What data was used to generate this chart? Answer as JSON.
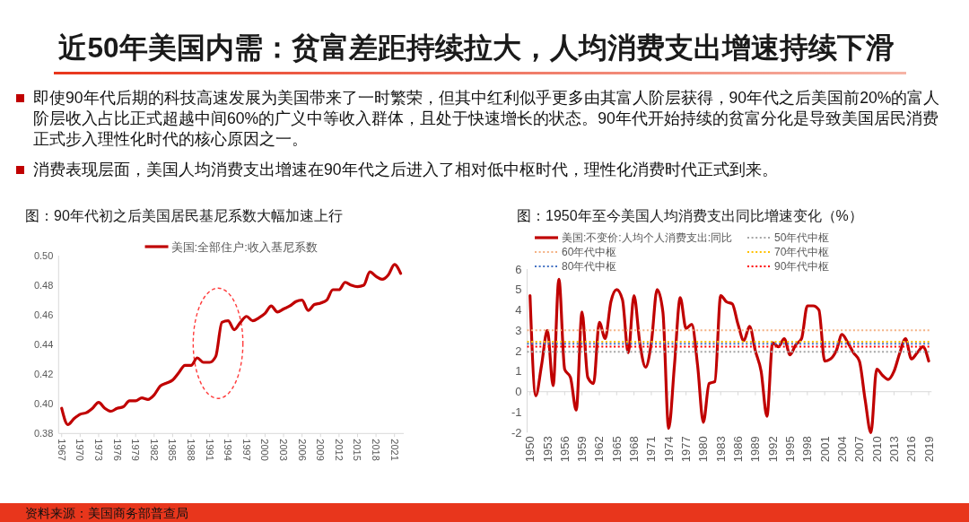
{
  "chart_data": [
    {
      "type": "other",
      "title": "近50年美国内需：贫富差距持续拉大，人均消费支出增速持续下滑",
      "annotations": [
        "即使90年代后期的科技高速发展为美国带来了一时繁荣，但其中红利似乎更多由其富人阶层获得，90年代之后美国前20%的富人阶层收入占比正式超越中间60%的广义中等收入群体，且处于快速增长的状态。90年代开始持续的贫富分化是导致美国居民消费正式步入理性化时代的核心原因之一。",
        "消费表现层面，美国人均消费支出增速在90年代之后进入了相对低中枢时代，理性化消费时代正式到来。"
      ]
    },
    {
      "type": "line",
      "title": "图：90年代初之后美国居民基尼系数大幅加速上行",
      "x": [
        1967,
        1968,
        1969,
        1970,
        1971,
        1972,
        1973,
        1974,
        1975,
        1976,
        1977,
        1978,
        1979,
        1980,
        1981,
        1982,
        1983,
        1984,
        1985,
        1986,
        1987,
        1988,
        1989,
        1990,
        1991,
        1992,
        1993,
        1994,
        1995,
        1996,
        1997,
        1998,
        1999,
        2000,
        2001,
        2002,
        2003,
        2004,
        2005,
        2006,
        2007,
        2008,
        2009,
        2010,
        2011,
        2012,
        2013,
        2014,
        2015,
        2016,
        2017,
        2018,
        2019,
        2020,
        2021,
        2022
      ],
      "series": [
        {
          "name": "美国:全部住户:收入基尼系数",
          "color": "#c00000",
          "values": [
            0.397,
            0.386,
            0.39,
            0.393,
            0.394,
            0.397,
            0.401,
            0.397,
            0.395,
            0.397,
            0.398,
            0.402,
            0.402,
            0.404,
            0.403,
            0.406,
            0.412,
            0.414,
            0.416,
            0.421,
            0.426,
            0.426,
            0.431,
            0.428,
            0.428,
            0.432,
            0.455,
            0.456,
            0.45,
            0.455,
            0.459,
            0.456,
            0.458,
            0.461,
            0.466,
            0.462,
            0.464,
            0.466,
            0.469,
            0.47,
            0.463,
            0.467,
            0.468,
            0.47,
            0.477,
            0.477,
            0.482,
            0.48,
            0.479,
            0.48,
            0.489,
            0.486,
            0.484,
            0.487,
            0.494,
            0.488
          ]
        }
      ],
      "xlim": [
        1966.5,
        2022.5
      ],
      "xticks": [
        1967,
        1970,
        1973,
        1976,
        1979,
        1982,
        1985,
        1988,
        1991,
        1994,
        1997,
        2000,
        2003,
        2006,
        2009,
        2012,
        2015,
        2018,
        2021
      ],
      "ylim": [
        0.38,
        0.5
      ],
      "yticks": [
        0.38,
        {
          "value": 0.4,
          "label": "0.40"
        },
        0.42,
        0.44,
        0.46,
        0.48,
        {
          "value": 0.5,
          "label": "0.50"
        }
      ],
      "legend": "top",
      "annotations": [
        "资料来源：美国商务部普查局"
      ]
    },
    {
      "type": "line",
      "title": "图：1950年至今美国人均消费支出同比增速变化（%）",
      "x": [
        1950,
        1951,
        1952,
        1953,
        1954,
        1955,
        1956,
        1957,
        1958,
        1959,
        1960,
        1961,
        1962,
        1963,
        1964,
        1965,
        1966,
        1967,
        1968,
        1969,
        1970,
        1971,
        1972,
        1973,
        1974,
        1975,
        1976,
        1977,
        1978,
        1979,
        1980,
        1981,
        1982,
        1983,
        1984,
        1985,
        1986,
        1987,
        1988,
        1989,
        1990,
        1991,
        1992,
        1993,
        1994,
        1995,
        1996,
        1997,
        1998,
        1999,
        2000,
        2001,
        2002,
        2003,
        2004,
        2005,
        2006,
        2007,
        2008,
        2009,
        2010,
        2011,
        2012,
        2013,
        2014,
        2015,
        2016,
        2017,
        2018,
        2019
      ],
      "series": [
        {
          "name": "美国:不变价:人均个人消费支出:同比",
          "color": "#c00000",
          "values": [
            4.7,
            -0.2,
            1.3,
            3.0,
            0.3,
            5.5,
            1.1,
            0.7,
            -0.9,
            3.9,
            0.7,
            0.4,
            3.4,
            2.6,
            4.4,
            5.0,
            4.5,
            1.9,
            4.7,
            2.4,
            1.2,
            2.4,
            5.0,
            3.9,
            -1.8,
            1.3,
            4.6,
            3.1,
            3.3,
            1.3,
            -1.5,
            0.4,
            0.5,
            4.7,
            4.4,
            4.3,
            3.3,
            2.5,
            3.2,
            2.0,
            1.0,
            -1.2,
            2.4,
            2.2,
            2.6,
            1.8,
            2.3,
            2.6,
            4.2,
            4.2,
            4.0,
            1.5,
            1.6,
            2.0,
            2.8,
            2.4,
            1.9,
            1.5,
            -0.4,
            -2.0,
            1.1,
            0.8,
            0.6,
            1.0,
            1.9,
            2.6,
            1.6,
            1.9,
            2.2,
            1.5
          ]
        }
      ],
      "ref_lines": [
        {
          "axis": "y",
          "value": 1.95,
          "label": "50年代中枢",
          "color": "#a6a6a6",
          "line_style": "dotted"
        },
        {
          "axis": "y",
          "value": 3.0,
          "label": "60年代中枢",
          "color": "#f4b183",
          "line_style": "dotted"
        },
        {
          "axis": "y",
          "value": 2.45,
          "label": "70年代中枢",
          "color": "#ffc000",
          "line_style": "dotted"
        },
        {
          "axis": "y",
          "value": 2.35,
          "label": "80年代中枢",
          "color": "#4472c4",
          "line_style": "dotted"
        },
        {
          "axis": "y",
          "value": 2.2,
          "label": "90年代中枢",
          "color": "#ff0000",
          "line_style": "dotted"
        }
      ],
      "xlim": [
        1949.5,
        2019.5
      ],
      "xticks": [
        1950,
        1953,
        1956,
        1959,
        1962,
        1965,
        1968,
        1971,
        1974,
        1977,
        1980,
        1983,
        1986,
        1989,
        1992,
        1995,
        1998,
        2001,
        2004,
        2007,
        2010,
        2013,
        2016,
        2019
      ],
      "ylim": [
        -2,
        6
      ],
      "yticks": [
        -2,
        -1,
        0,
        1,
        2,
        3,
        4,
        5,
        6
      ],
      "legend": "top"
    }
  ]
}
